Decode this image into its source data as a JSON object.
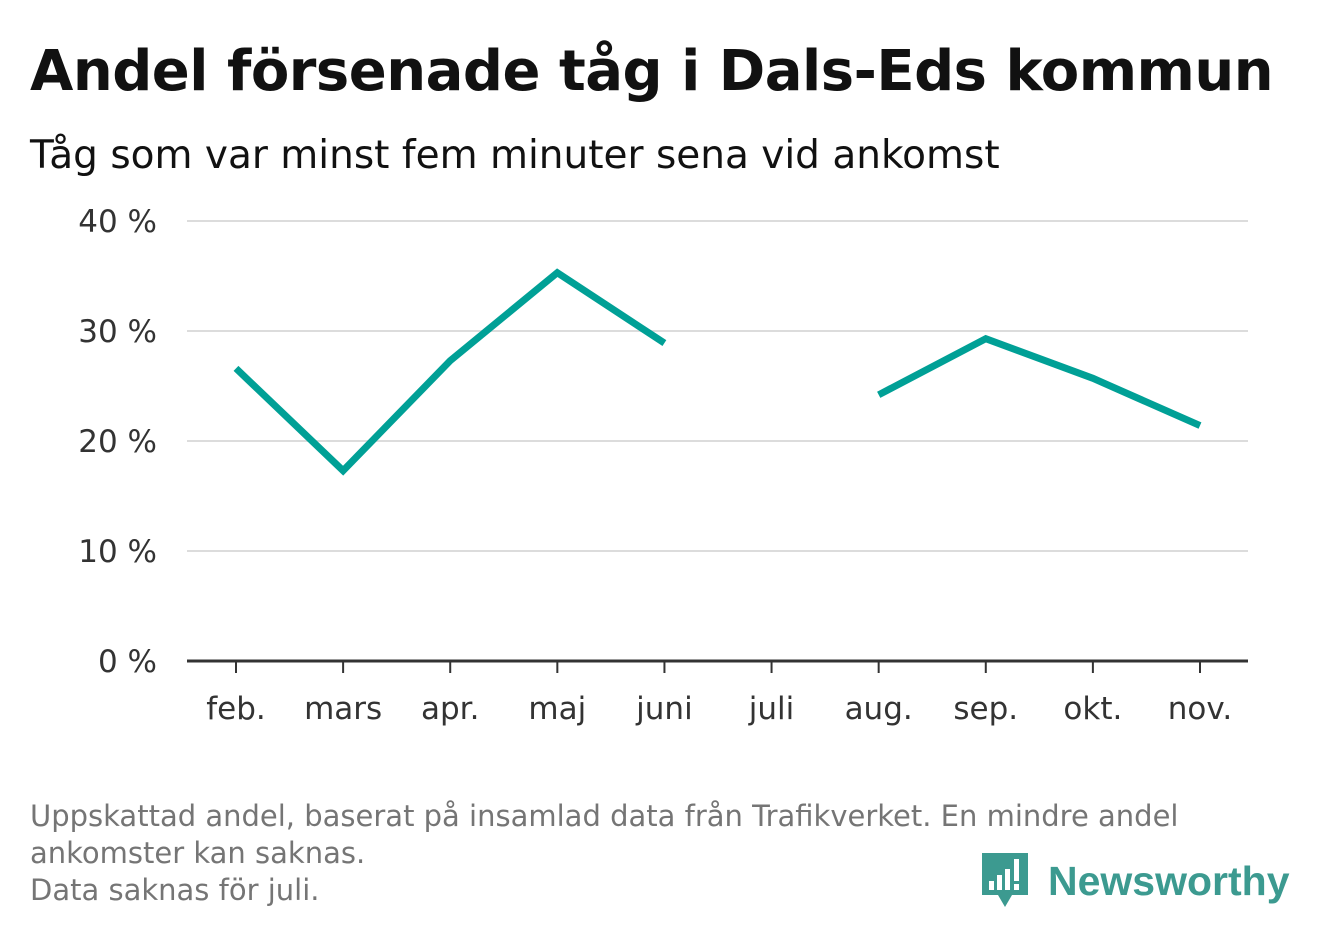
{
  "title": "Andel försenade tåg i Dals-Eds kommun",
  "subtitle": "Tåg som var minst fem minuter sena vid ankomst",
  "footnote": {
    "line1": "Uppskattad andel, baserat på insamlad data från Trafikverket. En mindre andel",
    "line2": "ankomster kan saknas.",
    "line3": "Data saknas för juli."
  },
  "logo": {
    "text": "Newsworthy",
    "icon": "newsworthy-bar-chart-speech-bubble-icon",
    "color": "#3c9a90"
  },
  "chart_data": {
    "type": "line",
    "categories": [
      "feb.",
      "mars",
      "apr.",
      "maj",
      "juni",
      "juli",
      "aug.",
      "sep.",
      "okt.",
      "nov."
    ],
    "series": [
      {
        "values": [
          26.6,
          17.3,
          27.3,
          35.3,
          28.9,
          null,
          24.2,
          29.3,
          25.7,
          21.4
        ],
        "color": "#00a096"
      }
    ],
    "ylim": [
      0,
      40
    ],
    "yticks": [
      0,
      10,
      20,
      30,
      40
    ],
    "ytick_labels": [
      "0 %",
      "10 %",
      "20 %",
      "30 %",
      "40 %"
    ],
    "xlabel": "",
    "ylabel": "",
    "grid": true,
    "legend": "none"
  }
}
